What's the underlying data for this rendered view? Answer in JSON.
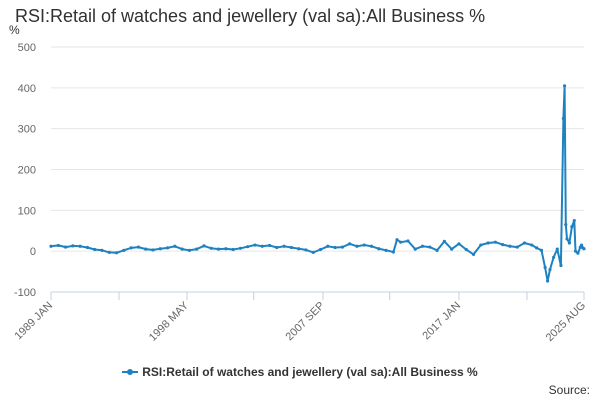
{
  "chart_data": {
    "type": "line",
    "title": "RSI:Retail of watches and jewellery (val sa):All Business %",
    "ylabel": "%",
    "xlabel": "",
    "ylim": [
      -100,
      500
    ],
    "yticks": [
      -100,
      0,
      100,
      200,
      300,
      400,
      500
    ],
    "x_start": "1989-01",
    "x_end": "2025-08",
    "x_tick_labels": [
      {
        "date": "1989-01",
        "label": "1989 JAN"
      },
      {
        "date": "1998-05",
        "label": "1998 MAY"
      },
      {
        "date": "2007-09",
        "label": "2007 SEP"
      },
      {
        "date": "2017-01",
        "label": "2017 JAN"
      },
      {
        "date": "2025-08",
        "label": "2025 AUG"
      }
    ],
    "x_minor_ticks": [
      "1993-09",
      "2002-12",
      "2012-04",
      "2021-09"
    ],
    "grid": "horizontal",
    "legend_position": "bottom",
    "series": [
      {
        "name": "RSI:Retail of watches and jewellery (val sa):All Business %",
        "color": "#1f82c0",
        "points": [
          [
            "1989-01",
            12
          ],
          [
            "1989-07",
            14
          ],
          [
            "1990-01",
            10
          ],
          [
            "1990-07",
            13
          ],
          [
            "1991-01",
            12
          ],
          [
            "1991-07",
            9
          ],
          [
            "1992-01",
            4
          ],
          [
            "1992-07",
            2
          ],
          [
            "1993-01",
            -3
          ],
          [
            "1993-07",
            -4
          ],
          [
            "1994-01",
            2
          ],
          [
            "1994-07",
            8
          ],
          [
            "1995-01",
            10
          ],
          [
            "1995-07",
            5
          ],
          [
            "1996-01",
            3
          ],
          [
            "1996-07",
            6
          ],
          [
            "1997-01",
            8
          ],
          [
            "1997-07",
            12
          ],
          [
            "1998-01",
            5
          ],
          [
            "1998-07",
            2
          ],
          [
            "1999-01",
            5
          ],
          [
            "1999-07",
            13
          ],
          [
            "2000-01",
            7
          ],
          [
            "2000-07",
            5
          ],
          [
            "2001-01",
            6
          ],
          [
            "2001-07",
            4
          ],
          [
            "2002-01",
            7
          ],
          [
            "2002-07",
            11
          ],
          [
            "2003-01",
            15
          ],
          [
            "2003-07",
            12
          ],
          [
            "2004-01",
            14
          ],
          [
            "2004-07",
            9
          ],
          [
            "2005-01",
            12
          ],
          [
            "2005-07",
            9
          ],
          [
            "2006-01",
            6
          ],
          [
            "2006-07",
            3
          ],
          [
            "2007-01",
            -3
          ],
          [
            "2007-07",
            4
          ],
          [
            "2008-01",
            12
          ],
          [
            "2008-07",
            9
          ],
          [
            "2009-01",
            10
          ],
          [
            "2009-07",
            18
          ],
          [
            "2010-01",
            12
          ],
          [
            "2010-07",
            15
          ],
          [
            "2011-01",
            12
          ],
          [
            "2011-07",
            6
          ],
          [
            "2012-01",
            2
          ],
          [
            "2012-07",
            -2
          ],
          [
            "2012-10",
            28
          ],
          [
            "2013-01",
            22
          ],
          [
            "2013-07",
            25
          ],
          [
            "2014-01",
            5
          ],
          [
            "2014-07",
            12
          ],
          [
            "2015-01",
            10
          ],
          [
            "2015-07",
            2
          ],
          [
            "2016-01",
            24
          ],
          [
            "2016-07",
            5
          ],
          [
            "2017-01",
            18
          ],
          [
            "2017-07",
            4
          ],
          [
            "2018-01",
            -8
          ],
          [
            "2018-07",
            15
          ],
          [
            "2019-01",
            20
          ],
          [
            "2019-07",
            22
          ],
          [
            "2020-01",
            16
          ],
          [
            "2020-07",
            12
          ],
          [
            "2021-01",
            10
          ],
          [
            "2021-07",
            20
          ],
          [
            "2022-01",
            15
          ],
          [
            "2022-05",
            8
          ],
          [
            "2022-09",
            2
          ],
          [
            "2022-12",
            -40
          ],
          [
            "2023-02",
            -73
          ],
          [
            "2023-04",
            -45
          ],
          [
            "2023-07",
            -15
          ],
          [
            "2023-10",
            5
          ],
          [
            "2024-01",
            -35
          ],
          [
            "2024-03",
            325
          ],
          [
            "2024-04",
            405
          ],
          [
            "2024-05",
            65
          ],
          [
            "2024-06",
            30
          ],
          [
            "2024-08",
            20
          ],
          [
            "2024-10",
            60
          ],
          [
            "2024-12",
            75
          ],
          [
            "2025-01",
            0
          ],
          [
            "2025-03",
            -5
          ],
          [
            "2025-05",
            10
          ],
          [
            "2025-06",
            15
          ],
          [
            "2025-07",
            8
          ],
          [
            "2025-08",
            6
          ]
        ]
      }
    ],
    "source_label": "Source:"
  }
}
